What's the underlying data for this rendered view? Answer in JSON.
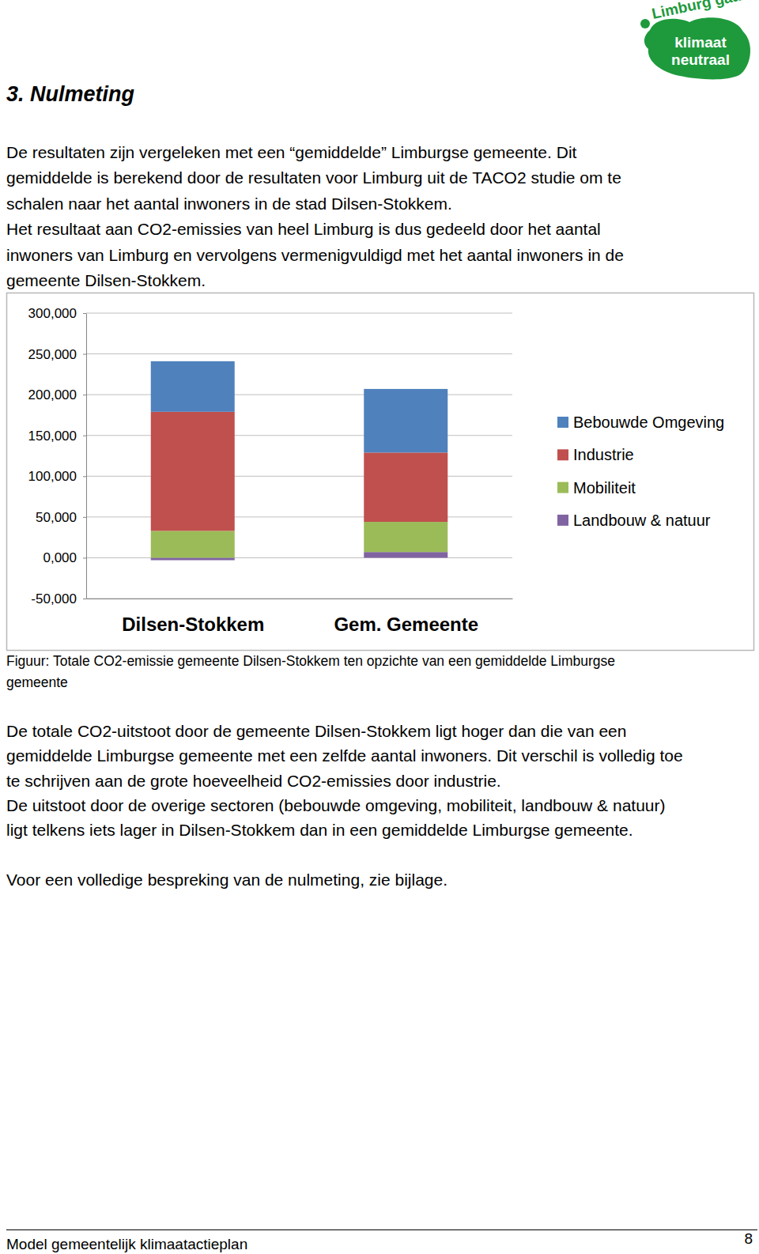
{
  "header": {
    "title": "3. Nulmeting",
    "logo": [
      "Limburg gaat",
      "klimaat",
      "neutraal"
    ]
  },
  "intro": [
    "De resultaten zijn vergeleken met een “gemiddelde” Limburgse gemeente. Dit",
    "gemiddelde is berekend door de resultaten voor Limburg uit de TACO2 studie om te",
    "schalen naar het aantal inwoners in de stad Dilsen-Stokkem.",
    "Het resultaat aan CO2-emissies van heel Limburg is dus gedeeld door het aantal",
    "inwoners van Limburg en vervolgens vermenigvuldigd met het aantal inwoners in de",
    "gemeente Dilsen-Stokkem."
  ],
  "chart_data": {
    "type": "bar",
    "stacked": true,
    "categories": [
      "Dilsen-Stokkem",
      "Gem. Gemeente"
    ],
    "series": [
      {
        "name": "Bebouwde Omgeving",
        "color": "#4f81bd",
        "values": [
          62000,
          78000
        ]
      },
      {
        "name": "Industrie",
        "color": "#c0504d",
        "values": [
          146000,
          85000
        ]
      },
      {
        "name": "Mobiliteit",
        "color": "#9bbb59",
        "values": [
          33000,
          37000
        ]
      },
      {
        "name": "Landbouw & natuur",
        "color": "#8064a2",
        "values": [
          -3000,
          7000
        ]
      }
    ],
    "ylim": [
      -50000,
      300000
    ],
    "yticks": [
      {
        "value": -50000,
        "label": "-50,000"
      },
      {
        "value": 0,
        "label": "0,000"
      },
      {
        "value": 50000,
        "label": "50,000"
      },
      {
        "value": 100000,
        "label": "100,000"
      },
      {
        "value": 150000,
        "label": "150,000"
      },
      {
        "value": 200000,
        "label": "200,000"
      },
      {
        "value": 250000,
        "label": "250,000"
      },
      {
        "value": 300000,
        "label": "300,000"
      }
    ],
    "grid": true,
    "legend": "right"
  },
  "figure_caption": [
    "Figuur: Totale CO2-emissie gemeente Dilsen-Stokkem ten opzichte van een gemiddelde Limburgse",
    "gemeente"
  ],
  "body": [
    "De totale CO2-uitstoot door de gemeente Dilsen-Stokkem ligt hoger dan die van een",
    "gemiddelde Limburgse gemeente met een zelfde aantal inwoners. Dit verschil is volledig toe",
    "te schrijven aan de grote hoeveelheid CO2-emissies door industrie.",
    "De uitstoot door de overige sectoren (bebouwde omgeving, mobiliteit, landbouw & natuur)",
    "ligt telkens iets lager in Dilsen-Stokkem dan in een gemiddelde Limburgse gemeente."
  ],
  "closing": "Voor een volledige bespreking van de nulmeting, zie bijlage.",
  "footer": {
    "text": "Model gemeentelijk klimaatactieplan",
    "page": "8"
  }
}
